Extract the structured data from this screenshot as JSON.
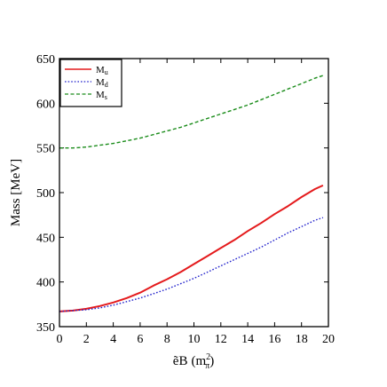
{
  "chart_data": {
    "type": "line",
    "title": "",
    "xlabel": "B",
    "xlabel_prefix": "ẽ",
    "xlabel_unit_base": "(m",
    "xlabel_unit_sup": "2",
    "xlabel_unit_sub": "π",
    "xlabel_unit_close": ")",
    "ylabel": "Mass [MeV]",
    "xlim": [
      0,
      20
    ],
    "ylim": [
      350,
      650
    ],
    "xticks": [
      0,
      2,
      4,
      6,
      8,
      10,
      12,
      14,
      16,
      18,
      20
    ],
    "yticks": [
      350,
      400,
      450,
      500,
      550,
      600,
      650
    ],
    "grid": false,
    "legend_position": "top-left",
    "x": [
      0,
      1,
      2,
      3,
      4,
      5,
      6,
      7,
      8,
      9,
      10,
      11,
      12,
      13,
      14,
      15,
      16,
      17,
      18,
      19,
      19.6
    ],
    "series": [
      {
        "name": "M",
        "sub": "u",
        "color": "#e41a1c",
        "dash": "solid",
        "values": [
          367,
          368,
          370,
          373,
          377,
          382,
          388,
          396,
          403,
          411,
          420,
          429,
          438,
          447,
          457,
          466,
          476,
          485,
          495,
          504,
          508
        ]
      },
      {
        "name": "M",
        "sub": "d",
        "color": "#2222cc",
        "dash": "dotted",
        "values": [
          367,
          368,
          369,
          371,
          374,
          378,
          382,
          387,
          392,
          398,
          404,
          411,
          418,
          425,
          432,
          439,
          447,
          455,
          462,
          469,
          472
        ]
      },
      {
        "name": "M",
        "sub": "s",
        "color": "#1a8c1a",
        "dash": "dashed",
        "values": [
          550,
          550,
          551,
          553,
          555,
          558,
          561,
          565,
          569,
          573,
          578,
          583,
          588,
          593,
          598,
          604,
          610,
          616,
          622,
          628,
          631
        ]
      }
    ]
  }
}
